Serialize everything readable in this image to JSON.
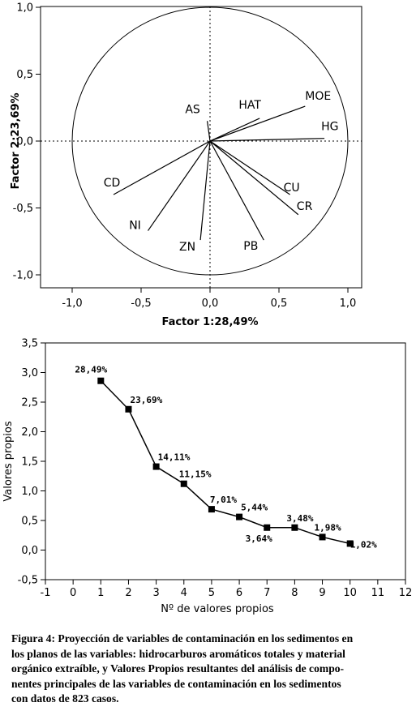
{
  "chart_data": [
    {
      "type": "scatter",
      "subtype": "loading-plot",
      "xlabel": "Factor 1:28,49%",
      "ylabel": "Factor 2:23,69%",
      "xlim": [
        -1.0,
        1.0
      ],
      "ylim": [
        -1.0,
        1.0
      ],
      "x_ticks": [
        "-1,0",
        "-0,5",
        "0,0",
        "0,5",
        "1,0"
      ],
      "y_ticks": [
        "1,0",
        "0,5",
        "0,0",
        "-0,5",
        "-1,0"
      ],
      "unit_circle": true,
      "zero_lines": "dotted",
      "series": [
        {
          "points": [
            {
              "label": "AS",
              "x": -0.02,
              "y": 0.15
            },
            {
              "label": "HAT",
              "x": 0.36,
              "y": 0.17
            },
            {
              "label": "MOE",
              "x": 0.69,
              "y": 0.26
            },
            {
              "label": "HG",
              "x": 0.83,
              "y": 0.02
            },
            {
              "label": "CU",
              "x": 0.58,
              "y": -0.4
            },
            {
              "label": "CR",
              "x": 0.64,
              "y": -0.55
            },
            {
              "label": "PB",
              "x": 0.39,
              "y": -0.74
            },
            {
              "label": "ZN",
              "x": -0.07,
              "y": -0.74
            },
            {
              "label": "NI",
              "x": -0.45,
              "y": -0.67
            },
            {
              "label": "CD",
              "x": -0.7,
              "y": -0.4
            }
          ]
        }
      ]
    },
    {
      "type": "line",
      "xlabel": "Nº de valores propios",
      "ylabel": "Valores propios",
      "xlim": [
        -1,
        12
      ],
      "ylim": [
        -0.5,
        3.5
      ],
      "x_ticks": [
        "-1",
        "0",
        "1",
        "2",
        "3",
        "4",
        "5",
        "6",
        "7",
        "8",
        "9",
        "10",
        "11",
        "12"
      ],
      "y_ticks": [
        "3,5",
        "3,0",
        "2,5",
        "2,0",
        "1,5",
        "1,0",
        "0,5",
        "0,0",
        "-0,5"
      ],
      "marker": "square",
      "series": [
        {
          "x": [
            1,
            2,
            3,
            4,
            5,
            6,
            7,
            8,
            9,
            10
          ],
          "values": [
            2.86,
            2.38,
            1.41,
            1.12,
            0.69,
            0.56,
            0.38,
            0.38,
            0.22,
            0.11
          ],
          "labels": [
            "28,49%",
            "23,69%",
            "14,11%",
            "11,15%",
            "7,01%",
            "5,44%",
            "3,64%",
            "3,48%",
            "1,98%",
            "1,02%"
          ]
        }
      ]
    }
  ],
  "caption_lines": [
    "Figura 4: Proyección de variables de contaminación en los sedimentos en",
    "los planos de las variables: hidrocarburos aromáticos totales y material",
    "orgánico extraíble, y Valores Propios resultantes del análisis de compo-",
    "nentes principales de las variables de contaminación en los sedimentos",
    "con datos de 823 casos."
  ]
}
